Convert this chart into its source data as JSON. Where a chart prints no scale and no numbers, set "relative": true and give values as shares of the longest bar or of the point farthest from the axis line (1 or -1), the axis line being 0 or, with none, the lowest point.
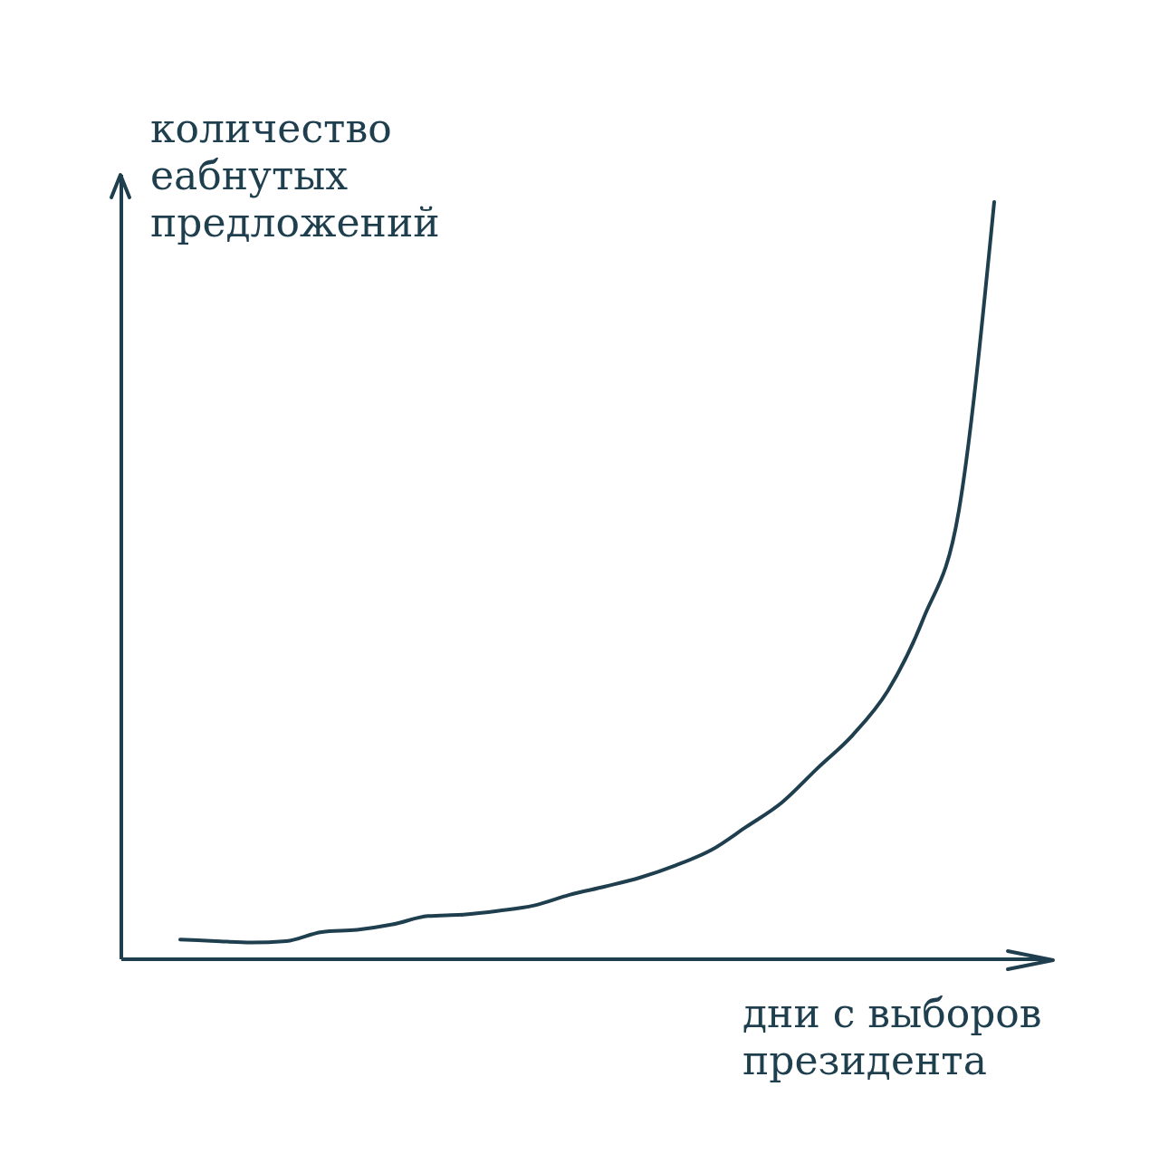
{
  "chart_data": {
    "type": "line",
    "relative": true,
    "xlabel": "дни с выборов президента",
    "ylabel": "количество еабнутых предложений",
    "categories": [
      null,
      null,
      null,
      null,
      null,
      null,
      null,
      null,
      null,
      null,
      null,
      null,
      null,
      null,
      null,
      null,
      null,
      null,
      null,
      null,
      null,
      null,
      null,
      null
    ],
    "series": [
      {
        "color": "#1f3f4f",
        "values": [
          0.026,
          0.024,
          0.022,
          0.024,
          0.036,
          0.039,
          0.046,
          0.057,
          0.059,
          0.064,
          0.071,
          0.085,
          0.096,
          0.108,
          0.124,
          0.144,
          0.175,
          0.207,
          0.252,
          0.296,
          0.355,
          0.45,
          0.592,
          1
        ]
      }
    ],
    "marker": "none",
    "grid": false,
    "legend": false
  }
}
